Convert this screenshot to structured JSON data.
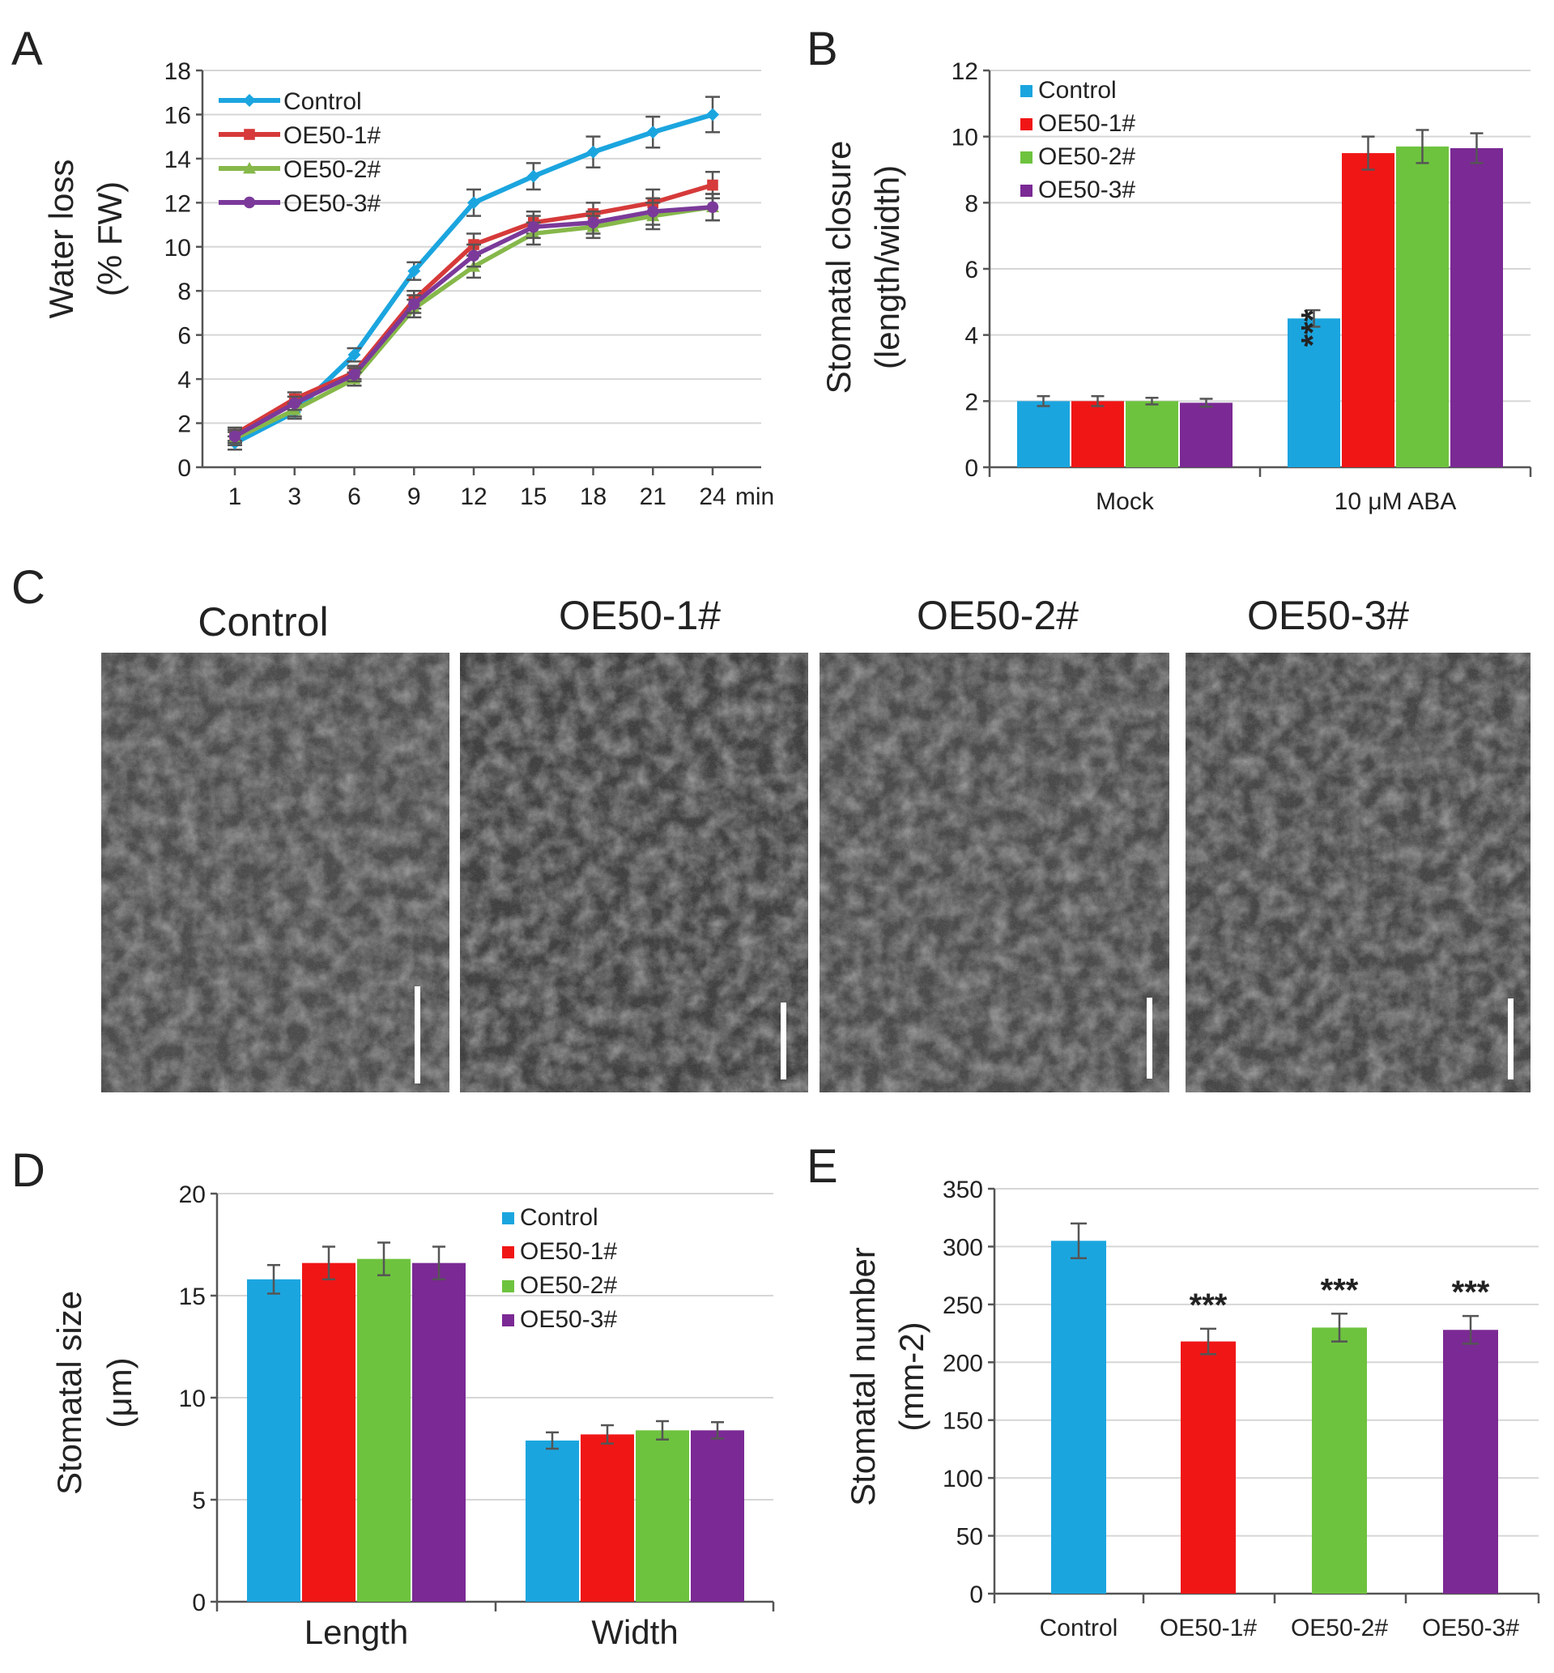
{
  "panels": {
    "A": "A",
    "B": "B",
    "C": "C",
    "D": "D",
    "E": "E"
  },
  "colors": {
    "control": "#1ba5df",
    "oe1": "#f01616",
    "oe2": "#6ec33e",
    "oe3": "#7b2994"
  },
  "chart_data": [
    {
      "id": "A",
      "type": "line",
      "ylabel": "Water loss",
      "ylabel2": "(% FW)",
      "xlabel": "min",
      "categories": [
        "1",
        "3",
        "6",
        "9",
        "12",
        "15",
        "18",
        "21",
        "24"
      ],
      "ylim": [
        0,
        18
      ],
      "yticks": [
        0,
        2,
        4,
        6,
        8,
        10,
        12,
        14,
        16,
        18
      ],
      "legend": "top-left",
      "series": [
        {
          "name": "Control",
          "color": "#1ba5df",
          "marker": "diamond",
          "values": [
            1.1,
            2.5,
            5.1,
            8.9,
            12.0,
            13.2,
            14.3,
            15.2,
            16.0
          ],
          "errors": [
            0.3,
            0.3,
            0.3,
            0.4,
            0.6,
            0.6,
            0.7,
            0.7,
            0.8
          ]
        },
        {
          "name": "OE50-1#",
          "color": "#d63a3a",
          "marker": "square",
          "values": [
            1.5,
            3.1,
            4.3,
            7.6,
            10.1,
            11.1,
            11.5,
            12.0,
            12.8
          ],
          "errors": [
            0.3,
            0.3,
            0.3,
            0.4,
            0.5,
            0.5,
            0.5,
            0.6,
            0.6
          ]
        },
        {
          "name": "OE50-2#",
          "color": "#86b84a",
          "marker": "triangle",
          "values": [
            1.3,
            2.6,
            4.0,
            7.2,
            9.1,
            10.6,
            10.9,
            11.4,
            11.8
          ],
          "errors": [
            0.3,
            0.3,
            0.3,
            0.4,
            0.5,
            0.5,
            0.5,
            0.6,
            0.6
          ]
        },
        {
          "name": "OE50-3#",
          "color": "#7b3a9a",
          "marker": "circle",
          "values": [
            1.4,
            2.9,
            4.2,
            7.4,
            9.6,
            10.9,
            11.1,
            11.6,
            11.8
          ],
          "errors": [
            0.3,
            0.3,
            0.3,
            0.4,
            0.5,
            0.5,
            0.5,
            0.6,
            0.6
          ]
        }
      ]
    },
    {
      "id": "B",
      "type": "bar",
      "ylabel": "Stomatal closure",
      "ylabel2": "(length/width)",
      "categories": [
        "Mock",
        "10 μM ABA"
      ],
      "ylim": [
        0,
        12
      ],
      "yticks": [
        0,
        2,
        4,
        6,
        8,
        10,
        12
      ],
      "legend": "top-left",
      "series": [
        {
          "name": "Control",
          "values": [
            2.0,
            4.5
          ],
          "errors": [
            0.15,
            0.25
          ]
        },
        {
          "name": "OE50-1#",
          "values": [
            2.0,
            9.5
          ],
          "errors": [
            0.15,
            0.5
          ]
        },
        {
          "name": "OE50-2#",
          "values": [
            2.0,
            9.7
          ],
          "errors": [
            0.1,
            0.5
          ]
        },
        {
          "name": "OE50-3#",
          "values": [
            1.95,
            9.65
          ],
          "errors": [
            0.12,
            0.45
          ]
        }
      ],
      "annotations": [
        {
          "category": 1,
          "series": 0,
          "text": "***"
        }
      ]
    },
    {
      "id": "D",
      "type": "bar",
      "ylabel": "Stomatal size",
      "ylabel2": "(μm)",
      "categories": [
        "Length",
        "Width"
      ],
      "ylim": [
        0,
        20
      ],
      "yticks": [
        0,
        5,
        10,
        15,
        20
      ],
      "legend": "top-right",
      "series": [
        {
          "name": "Control",
          "values": [
            15.8,
            7.9
          ],
          "errors": [
            0.7,
            0.4
          ]
        },
        {
          "name": "OE50-1#",
          "values": [
            16.6,
            8.2
          ],
          "errors": [
            0.8,
            0.45
          ]
        },
        {
          "name": "OE50-2#",
          "values": [
            16.8,
            8.4
          ],
          "errors": [
            0.8,
            0.45
          ]
        },
        {
          "name": "OE50-3#",
          "values": [
            16.6,
            8.4
          ],
          "errors": [
            0.8,
            0.4
          ]
        }
      ]
    },
    {
      "id": "E",
      "type": "bar",
      "ylabel": "Stomatal number",
      "ylabel2": "(mm-2)",
      "categories": [
        "Control",
        "OE50-1#",
        "OE50-2#",
        "OE50-3#"
      ],
      "ylim": [
        0,
        350
      ],
      "yticks": [
        0,
        50,
        100,
        150,
        200,
        250,
        300,
        350
      ],
      "values": [
        305,
        218,
        230,
        228
      ],
      "errors": [
        15,
        11,
        12,
        12
      ],
      "annotations": [
        {
          "index": 1,
          "text": "***"
        },
        {
          "index": 2,
          "text": "***"
        },
        {
          "index": 3,
          "text": "***"
        }
      ]
    }
  ],
  "micrographs": {
    "titles": [
      "Control",
      "OE50-1#",
      "OE50-2#",
      "OE50-3#"
    ]
  }
}
